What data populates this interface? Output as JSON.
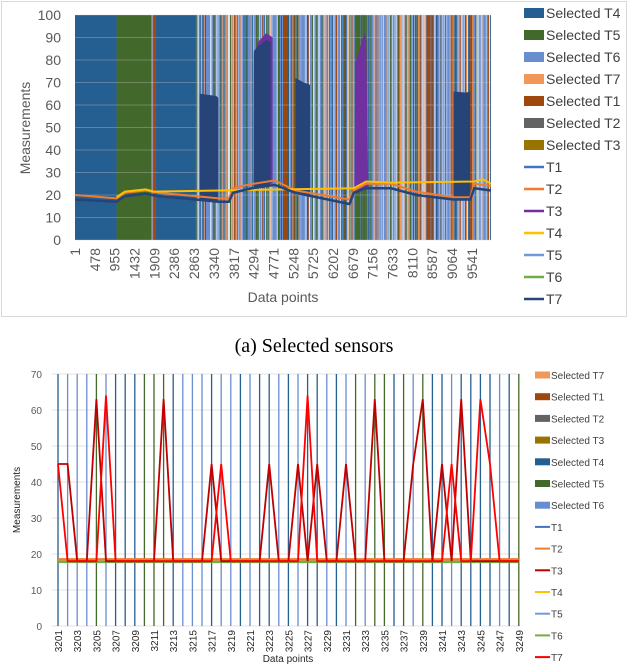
{
  "caption_a": "(a) Selected sensors",
  "chart_data": [
    {
      "type": "area+line",
      "xlabel": "Data points",
      "ylabel": "Measurements",
      "ylim": [
        0,
        100
      ],
      "yticks": [
        0,
        10,
        20,
        30,
        40,
        50,
        60,
        70,
        80,
        90,
        100
      ],
      "xticks": [
        "1",
        "478",
        "955",
        "1432",
        "1909",
        "2386",
        "2863",
        "3340",
        "3817",
        "4294",
        "4771",
        "5248",
        "5725",
        "6202",
        "6679",
        "7156",
        "7633",
        "8110",
        "8587",
        "9064",
        "9541"
      ],
      "xrange": [
        1,
        10000
      ],
      "legend": [
        {
          "label": "Selected T4",
          "kind": "box",
          "color": "#255e91"
        },
        {
          "label": "Selected T5",
          "kind": "box",
          "color": "#43682b"
        },
        {
          "label": "Selected T6",
          "kind": "box",
          "color": "#698ed0"
        },
        {
          "label": "Selected T7",
          "kind": "box",
          "color": "#f1975a"
        },
        {
          "label": "Selected T1",
          "kind": "box",
          "color": "#9e480e"
        },
        {
          "label": "Selected T2",
          "kind": "box",
          "color": "#636363"
        },
        {
          "label": "Selected T3",
          "kind": "box",
          "color": "#997300"
        },
        {
          "label": "T1",
          "kind": "line",
          "color": "#4472c4"
        },
        {
          "label": "T2",
          "kind": "line",
          "color": "#ed7d31"
        },
        {
          "label": "T3",
          "kind": "line",
          "color": "#7030a0"
        },
        {
          "label": "T4",
          "kind": "line",
          "color": "#ffc000"
        },
        {
          "label": "T5",
          "kind": "line",
          "color": "#6f9bd8"
        },
        {
          "label": "T6",
          "kind": "line",
          "color": "#70ad47"
        },
        {
          "label": "T7",
          "kind": "line",
          "color": "#264478"
        }
      ],
      "selected_segments": [
        [
          1,
          1000,
          "#255e91"
        ],
        [
          1000,
          1840,
          "#43682b"
        ],
        [
          1840,
          1860,
          "#f1975a"
        ],
        [
          1880,
          1950,
          "#9e480e"
        ],
        [
          1950,
          2900,
          "#255e91"
        ]
      ],
      "mixed_region": [
        2900,
        10000
      ],
      "series": [
        {
          "name": "T2",
          "color": "#ed7d31",
          "points": [
            [
              1,
              20
            ],
            [
              1000,
              18.5
            ],
            [
              1200,
              21
            ],
            [
              1700,
              22
            ],
            [
              2000,
              21
            ],
            [
              2900,
              19.5
            ],
            [
              3450,
              18.5
            ],
            [
              3700,
              18.5
            ],
            [
              3800,
              23
            ],
            [
              4250,
              25
            ],
            [
              4300,
              25
            ],
            [
              4800,
              26.5
            ],
            [
              5300,
              22
            ],
            [
              6600,
              18
            ],
            [
              6700,
              22
            ],
            [
              7000,
              25
            ],
            [
              7600,
              25
            ],
            [
              8200,
              21.5
            ],
            [
              9100,
              19
            ],
            [
              9500,
              19
            ],
            [
              9600,
              25
            ],
            [
              10000,
              24
            ]
          ]
        },
        {
          "name": "T4",
          "color": "#ffc000",
          "points": [
            [
              1000,
              19
            ],
            [
              1200,
              21.5
            ],
            [
              1700,
              22.5
            ],
            [
              1900,
              21.5
            ],
            [
              6700,
              23
            ],
            [
              7000,
              26
            ],
            [
              7600,
              25.5
            ],
            [
              9600,
              26
            ],
            [
              9800,
              27
            ],
            [
              10000,
              25
            ]
          ]
        },
        {
          "name": "T7",
          "color": "#264478",
          "points": [
            [
              1,
              18
            ],
            [
              1000,
              17
            ],
            [
              1200,
              19.5
            ],
            [
              1700,
              20.5
            ],
            [
              2000,
              19.5
            ],
            [
              2900,
              18
            ],
            [
              3450,
              17
            ],
            [
              3700,
              17
            ],
            [
              3800,
              21
            ],
            [
              4250,
              23
            ],
            [
              4800,
              24.5
            ],
            [
              5300,
              21
            ],
            [
              6600,
              16
            ],
            [
              6700,
              21
            ],
            [
              7000,
              23
            ],
            [
              7600,
              23
            ],
            [
              8200,
              20
            ],
            [
              9100,
              18
            ],
            [
              9500,
              18
            ],
            [
              9600,
              23
            ],
            [
              10000,
              22
            ]
          ]
        }
      ],
      "spikes": [
        {
          "name": "T7",
          "color": "#264478",
          "points": [
            [
              3000,
              18
            ],
            [
              3000,
              65
            ],
            [
              3400,
              64
            ],
            [
              3450,
              63
            ],
            [
              3450,
              17
            ]
          ]
        },
        {
          "name": "T3",
          "color": "#7030a0",
          "points": [
            [
              4290,
              25
            ],
            [
              4300,
              82
            ],
            [
              4400,
              88
            ],
            [
              4600,
              92
            ],
            [
              4750,
              90
            ],
            [
              4750,
              25
            ]
          ]
        },
        {
          "name": "T7",
          "color": "#264478",
          "points": [
            [
              4290,
              23
            ],
            [
              4300,
              84
            ],
            [
              4400,
              86
            ],
            [
              4600,
              89
            ],
            [
              4700,
              88
            ],
            [
              4700,
              24
            ]
          ]
        },
        {
          "name": "T7",
          "color": "#264478",
          "points": [
            [
              5300,
              21
            ],
            [
              5300,
              72
            ],
            [
              5500,
              70
            ],
            [
              5650,
              69
            ],
            [
              5650,
              19
            ]
          ]
        },
        {
          "name": "T3",
          "color": "#7030a0",
          "points": [
            [
              6720,
              22
            ],
            [
              6740,
              79
            ],
            [
              6850,
              85
            ],
            [
              6950,
              92
            ],
            [
              7000,
              90
            ],
            [
              7050,
              23
            ]
          ]
        },
        {
          "name": "T7",
          "color": "#264478",
          "points": [
            [
              9100,
              18
            ],
            [
              9100,
              66
            ],
            [
              9400,
              65.5
            ],
            [
              9500,
              66
            ],
            [
              9500,
              18
            ]
          ]
        }
      ]
    },
    {
      "type": "line",
      "xlabel": "Data points",
      "ylabel": "Measurements",
      "ylim": [
        0,
        70
      ],
      "yticks": [
        0,
        10,
        20,
        30,
        40,
        50,
        60,
        70
      ],
      "categories_start": 3201,
      "categories_end": 3249,
      "xticks": [
        "3201",
        "3203",
        "3205",
        "3207",
        "3209",
        "3211",
        "3213",
        "3215",
        "3217",
        "3219",
        "3221",
        "3223",
        "3225",
        "3227",
        "3229",
        "3231",
        "3233",
        "3235",
        "3237",
        "3239",
        "3241",
        "3243",
        "3245",
        "3247",
        "3249"
      ],
      "selected_per_point": [
        "#255e91",
        "#698ed0",
        "#698ed0",
        "#698ed0",
        "#43682b",
        "#698ed0",
        "#255e91",
        "#255e91",
        "#255e91",
        "#43682b",
        "#43682b",
        "#43682b",
        "#255e91",
        "#698ed0",
        "#698ed0",
        "#698ed0",
        "#255e91",
        "#698ed0",
        "#698ed0",
        "#255e91",
        "#698ed0",
        "#255e91",
        "#255e91",
        "#698ed0",
        "#255e91",
        "#698ed0",
        "#255e91",
        "#255e91",
        "#698ed0",
        "#255e91",
        "#698ed0",
        "#43682b",
        "#698ed0",
        "#43682b",
        "#43682b",
        "#255e91",
        "#43682b",
        "#698ed0",
        "#43682b",
        "#255e91",
        "#255e91",
        "#698ed0",
        "#255e91",
        "#255e91",
        "#255e91",
        "#255e91",
        "#698ed0",
        "#255e91",
        "#43682b"
      ],
      "legend": [
        {
          "label": "Selected T7",
          "kind": "box",
          "color": "#f1975a"
        },
        {
          "label": "Selected T1",
          "kind": "box",
          "color": "#9e480e"
        },
        {
          "label": "Selected T2",
          "kind": "box",
          "color": "#636363"
        },
        {
          "label": "Selected T3",
          "kind": "box",
          "color": "#997300"
        },
        {
          "label": "Selected T4",
          "kind": "box",
          "color": "#255e91"
        },
        {
          "label": "Selected T5",
          "kind": "box",
          "color": "#43682b"
        },
        {
          "label": "Selected T6",
          "kind": "box",
          "color": "#698ed0"
        },
        {
          "label": "T1",
          "kind": "line",
          "color": "#4472c4"
        },
        {
          "label": "T2",
          "kind": "line",
          "color": "#ed7d31"
        },
        {
          "label": "T3",
          "kind": "line",
          "color": "#c00000"
        },
        {
          "label": "T4",
          "kind": "line",
          "color": "#ffc000"
        },
        {
          "label": "T5",
          "kind": "line",
          "color": "#6f9bd8"
        },
        {
          "label": "T6",
          "kind": "line",
          "color": "#70ad47"
        },
        {
          "label": "T7",
          "kind": "line",
          "color": "#ff0000"
        }
      ],
      "series": [
        {
          "name": "T2",
          "color": "#ed7d31",
          "values": [
            18.5,
            18.5,
            18.5,
            18.5,
            18.5,
            18.5,
            18.5,
            18.5,
            18.5,
            18.5,
            18.5,
            18.5,
            18.5,
            18.5,
            18.5,
            18.5,
            18.5,
            18.5,
            18.5,
            18.5,
            18.5,
            18.5,
            18.5,
            18.5,
            18.5,
            18.5,
            18.5,
            18.5,
            18.5,
            18.5,
            18.5,
            18.5,
            18.5,
            18.5,
            18.5,
            18.5,
            18.5,
            18.5,
            18.5,
            18.5,
            18.5,
            18.5,
            18.5,
            18.5,
            18.5,
            18.5,
            18.5,
            18.5,
            18.5
          ]
        },
        {
          "name": "T6",
          "color": "#70ad47",
          "values": [
            17.8,
            17.8,
            17.8,
            17.8,
            17.8,
            17.8,
            17.8,
            17.8,
            17.8,
            17.8,
            17.8,
            17.8,
            17.8,
            17.8,
            17.8,
            17.8,
            17.8,
            17.8,
            17.8,
            17.8,
            17.8,
            17.8,
            17.8,
            17.8,
            17.8,
            17.8,
            17.8,
            17.8,
            17.8,
            17.8,
            17.8,
            17.8,
            17.8,
            17.8,
            17.8,
            17.8,
            17.8,
            17.8,
            17.8,
            17.8,
            17.8,
            17.8,
            17.8,
            17.8,
            17.8,
            17.8,
            17.8,
            17.8,
            17.8
          ]
        },
        {
          "name": "T3",
          "color": "#c00000",
          "values": [
            45,
            45,
            18,
            18,
            63,
            18,
            18,
            18,
            18,
            18,
            18,
            63,
            18,
            18,
            18,
            18,
            45,
            18,
            18,
            18,
            18,
            18,
            45,
            18,
            18,
            45,
            18,
            45,
            18,
            18,
            45,
            18,
            18,
            63,
            18,
            18,
            18,
            45,
            63,
            18,
            45,
            18,
            63,
            18,
            18,
            18,
            18,
            18,
            18
          ]
        },
        {
          "name": "T7",
          "color": "#ff0000",
          "values": [
            45,
            18,
            18,
            18,
            18,
            64,
            18,
            18,
            18,
            18,
            18,
            18,
            18,
            18,
            18,
            18,
            18,
            45,
            18,
            18,
            18,
            18,
            18,
            18,
            18,
            18,
            64,
            18,
            18,
            18,
            18,
            18,
            18,
            18,
            18,
            18,
            18,
            18,
            18,
            18,
            18,
            45,
            18,
            18,
            63,
            45,
            18,
            18,
            18
          ]
        }
      ]
    }
  ]
}
